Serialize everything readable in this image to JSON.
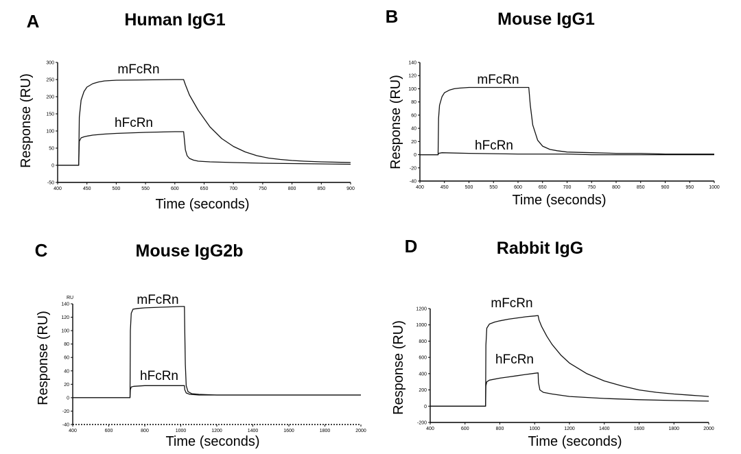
{
  "chart_data": [
    {
      "type": "line",
      "panel": "A",
      "title": "Human IgG1",
      "xlabel": "Time (seconds)",
      "ylabel": "Response (RU)",
      "xlim": [
        400,
        900
      ],
      "ylim": [
        -50,
        300
      ],
      "xticks": [
        400,
        450,
        500,
        550,
        600,
        650,
        700,
        750,
        800,
        850,
        900
      ],
      "yticks": [
        -50,
        0,
        50,
        100,
        150,
        200,
        250,
        300
      ],
      "series": [
        {
          "name": "mFcRn",
          "x": [
            400,
            436,
            437,
            440,
            445,
            450,
            460,
            470,
            480,
            500,
            550,
            600,
            615,
            618,
            625,
            640,
            660,
            680,
            700,
            720,
            740,
            760,
            780,
            800,
            820,
            850,
            900
          ],
          "y": [
            0,
            0,
            140,
            190,
            215,
            228,
            238,
            243,
            246,
            248,
            249,
            250,
            250,
            235,
            205,
            160,
            112,
            78,
            55,
            39,
            28,
            21,
            17,
            14,
            12,
            10,
            8
          ]
        },
        {
          "name": "hFcRn",
          "x": [
            400,
            436,
            437,
            440,
            445,
            450,
            460,
            480,
            500,
            550,
            600,
            615,
            616,
            618,
            621,
            625,
            632,
            640,
            660,
            700,
            750,
            800,
            850,
            900
          ],
          "y": [
            0,
            0,
            70,
            80,
            83,
            85,
            88,
            91,
            93,
            96,
            98,
            98,
            80,
            45,
            28,
            20,
            15,
            12,
            10,
            8,
            6,
            5,
            4,
            3
          ]
        }
      ]
    },
    {
      "type": "line",
      "panel": "B",
      "title": "Mouse IgG1",
      "xlabel": "Time (seconds)",
      "ylabel": "Response (RU)",
      "xlim": [
        400,
        1000
      ],
      "ylim": [
        -40,
        140
      ],
      "xticks": [
        400,
        450,
        500,
        550,
        600,
        650,
        700,
        750,
        800,
        850,
        900,
        950,
        1000
      ],
      "yticks": [
        -40,
        -20,
        0,
        20,
        40,
        60,
        80,
        100,
        120,
        140
      ],
      "series": [
        {
          "name": "mFcRn",
          "x": [
            400,
            437,
            438,
            440,
            445,
            450,
            460,
            470,
            480,
            500,
            550,
            600,
            622,
            625,
            630,
            640,
            650,
            665,
            680,
            700,
            750,
            800,
            850,
            900,
            950,
            1000
          ],
          "y": [
            0,
            0,
            55,
            75,
            88,
            94,
            98,
            100,
            101,
            102,
            102,
            102,
            102,
            75,
            45,
            22,
            13,
            8,
            6,
            4,
            3,
            2,
            2,
            1,
            1,
            1
          ]
        },
        {
          "name": "hFcRn",
          "x": [
            400,
            437,
            438,
            445,
            500,
            600,
            700,
            750,
            800,
            850,
            900,
            950,
            1000
          ],
          "y": [
            0,
            0,
            2,
            3,
            2,
            1,
            1,
            0,
            0,
            0,
            0,
            0,
            0
          ]
        }
      ]
    },
    {
      "type": "line",
      "panel": "C",
      "title": "Mouse IgG2b",
      "xlabel": "Time (seconds)",
      "ylabel": "Response (RU)",
      "unit": "RU",
      "xlim": [
        400,
        2000
      ],
      "ylim": [
        -40,
        140
      ],
      "xticks": [
        400,
        600,
        800,
        1000,
        1200,
        1400,
        1600,
        1800,
        2000
      ],
      "yticks": [
        -40,
        -20,
        0,
        20,
        40,
        60,
        80,
        100,
        120,
        140
      ],
      "series": [
        {
          "name": "mFcRn",
          "x": [
            400,
            718,
            720,
            725,
            735,
            760,
            800,
            900,
            1000,
            1020,
            1022,
            1025,
            1030,
            1040,
            1060,
            1100,
            1200,
            1400,
            1600,
            1800,
            2000
          ],
          "y": [
            0,
            0,
            100,
            126,
            132,
            133,
            134,
            135,
            136,
            136,
            100,
            50,
            18,
            9,
            6,
            5,
            4,
            4,
            4,
            4,
            4
          ]
        },
        {
          "name": "hFcRn",
          "x": [
            400,
            718,
            720,
            725,
            740,
            800,
            900,
            1000,
            1020,
            1022,
            1030,
            1050,
            1100,
            1200,
            1400,
            1600,
            1800,
            2000
          ],
          "y": [
            0,
            0,
            12,
            16,
            17,
            18,
            18,
            18,
            18,
            12,
            7,
            5,
            4,
            4,
            4,
            4,
            4,
            4
          ]
        }
      ]
    },
    {
      "type": "line",
      "panel": "D",
      "title": "Rabbit IgG",
      "xlabel": "Time (seconds)",
      "ylabel": "Response (RU)",
      "xlim": [
        400,
        2000
      ],
      "ylim": [
        -200,
        1200
      ],
      "xticks": [
        400,
        600,
        800,
        1000,
        1200,
        1400,
        1600,
        1800,
        2000
      ],
      "yticks": [
        -200,
        0,
        200,
        400,
        600,
        800,
        1000,
        1200
      ],
      "series": [
        {
          "name": "mFcRn",
          "x": [
            400,
            718,
            720,
            725,
            740,
            770,
            800,
            850,
            900,
            950,
            1000,
            1020,
            1025,
            1040,
            1070,
            1100,
            1150,
            1200,
            1300,
            1400,
            1500,
            1600,
            1700,
            1800,
            1900,
            2000
          ],
          "y": [
            0,
            0,
            750,
            960,
            1010,
            1035,
            1050,
            1070,
            1085,
            1100,
            1110,
            1115,
            1060,
            980,
            860,
            760,
            630,
            530,
            400,
            310,
            250,
            200,
            170,
            150,
            135,
            120
          ]
        },
        {
          "name": "hFcRn",
          "x": [
            400,
            718,
            720,
            725,
            740,
            800,
            850,
            900,
            950,
            1000,
            1020,
            1022,
            1030,
            1050,
            1100,
            1200,
            1400,
            1600,
            1800,
            2000
          ],
          "y": [
            0,
            0,
            250,
            300,
            320,
            345,
            360,
            375,
            390,
            405,
            410,
            290,
            200,
            170,
            150,
            120,
            95,
            80,
            70,
            62
          ]
        }
      ]
    }
  ]
}
